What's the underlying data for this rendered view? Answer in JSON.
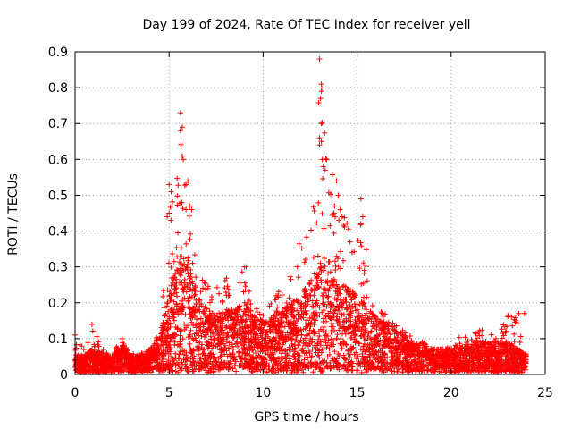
{
  "chart_data": {
    "type": "scatter",
    "title": "Day 199 of 2024, Rate Of TEC Index for receiver yell",
    "xlabel": "GPS time / hours",
    "ylabel": "ROTI / TECUs",
    "xlim": [
      0,
      25
    ],
    "ylim": [
      0,
      0.9
    ],
    "xticks": [
      0,
      5,
      10,
      15,
      20,
      25
    ],
    "xtick_labels": [
      "0",
      "5",
      "10",
      "15",
      "20",
      "25"
    ],
    "yticks": [
      0,
      0.1,
      0.2,
      0.3,
      0.4,
      0.5,
      0.6,
      0.7,
      0.8,
      0.9
    ],
    "ytick_labels": [
      "0",
      "0.1",
      "0.2",
      "0.3",
      "0.4",
      "0.5",
      "0.6",
      "0.7",
      "0.8",
      "0.9"
    ],
    "grid": true,
    "marker": "+",
    "color": "#ff0000",
    "x_range_of_data": [
      0,
      24
    ],
    "envelope": {
      "x": [
        0,
        0.5,
        1,
        1.5,
        2,
        2.5,
        3,
        3.5,
        4,
        4.5,
        5,
        5.5,
        6,
        6.5,
        7,
        7.5,
        8,
        8.5,
        9,
        9.5,
        10,
        10.5,
        11,
        11.5,
        12,
        12.5,
        13,
        13.5,
        14,
        14.5,
        15,
        15.5,
        16,
        16.5,
        17,
        17.5,
        18,
        18.5,
        19,
        19.5,
        20,
        20.5,
        21,
        21.5,
        22,
        22.5,
        23,
        23.5,
        24
      ],
      "y_mean": [
        0.03,
        0.03,
        0.04,
        0.03,
        0.03,
        0.05,
        0.03,
        0.03,
        0.04,
        0.06,
        0.12,
        0.18,
        0.18,
        0.12,
        0.1,
        0.09,
        0.1,
        0.1,
        0.11,
        0.09,
        0.08,
        0.09,
        0.1,
        0.11,
        0.12,
        0.14,
        0.17,
        0.16,
        0.14,
        0.13,
        0.13,
        0.1,
        0.09,
        0.08,
        0.07,
        0.06,
        0.05,
        0.05,
        0.04,
        0.04,
        0.04,
        0.04,
        0.05,
        0.05,
        0.05,
        0.05,
        0.05,
        0.04,
        0.03
      ],
      "y_max": [
        0.11,
        0.07,
        0.14,
        0.07,
        0.07,
        0.1,
        0.06,
        0.06,
        0.07,
        0.12,
        0.45,
        0.73,
        0.47,
        0.3,
        0.25,
        0.25,
        0.27,
        0.3,
        0.3,
        0.2,
        0.17,
        0.22,
        0.29,
        0.3,
        0.38,
        0.45,
        0.88,
        0.6,
        0.5,
        0.42,
        0.49,
        0.35,
        0.2,
        0.17,
        0.14,
        0.12,
        0.1,
        0.09,
        0.07,
        0.07,
        0.08,
        0.11,
        0.12,
        0.13,
        0.12,
        0.1,
        0.17,
        0.17,
        0.06
      ]
    },
    "outliers": [
      {
        "x": 13.0,
        "y": 0.88
      },
      {
        "x": 13.1,
        "y": 0.81
      },
      {
        "x": 13.1,
        "y": 0.79
      },
      {
        "x": 13.05,
        "y": 0.77
      },
      {
        "x": 13.1,
        "y": 0.7
      },
      {
        "x": 13.0,
        "y": 0.66
      },
      {
        "x": 13.1,
        "y": 0.65
      },
      {
        "x": 13.0,
        "y": 0.64
      },
      {
        "x": 13.15,
        "y": 0.6
      },
      {
        "x": 13.2,
        "y": 0.58
      },
      {
        "x": 13.3,
        "y": 0.57
      },
      {
        "x": 13.9,
        "y": 0.54
      },
      {
        "x": 14.0,
        "y": 0.5
      },
      {
        "x": 13.8,
        "y": 0.47
      },
      {
        "x": 14.1,
        "y": 0.46
      },
      {
        "x": 14.2,
        "y": 0.44
      },
      {
        "x": 15.2,
        "y": 0.49
      },
      {
        "x": 15.3,
        "y": 0.44
      },
      {
        "x": 15.2,
        "y": 0.42
      },
      {
        "x": 5.6,
        "y": 0.73
      },
      {
        "x": 5.7,
        "y": 0.69
      },
      {
        "x": 5.6,
        "y": 0.68
      },
      {
        "x": 5.7,
        "y": 0.61
      },
      {
        "x": 5.75,
        "y": 0.6
      },
      {
        "x": 6.0,
        "y": 0.54
      },
      {
        "x": 5.9,
        "y": 0.53
      },
      {
        "x": 5.0,
        "y": 0.53
      },
      {
        "x": 5.65,
        "y": 0.48
      },
      {
        "x": 6.1,
        "y": 0.47
      },
      {
        "x": 5.9,
        "y": 0.46
      },
      {
        "x": 6.2,
        "y": 0.46
      },
      {
        "x": 5.0,
        "y": 0.45
      },
      {
        "x": 4.9,
        "y": 0.44
      },
      {
        "x": 5.1,
        "y": 0.43
      },
      {
        "x": 0.9,
        "y": 0.14
      },
      {
        "x": 0.0,
        "y": 0.11
      },
      {
        "x": 2.5,
        "y": 0.1
      },
      {
        "x": 23.6,
        "y": 0.17
      },
      {
        "x": 23.9,
        "y": 0.17
      },
      {
        "x": 9.0,
        "y": 0.3
      },
      {
        "x": 9.1,
        "y": 0.3
      }
    ]
  }
}
